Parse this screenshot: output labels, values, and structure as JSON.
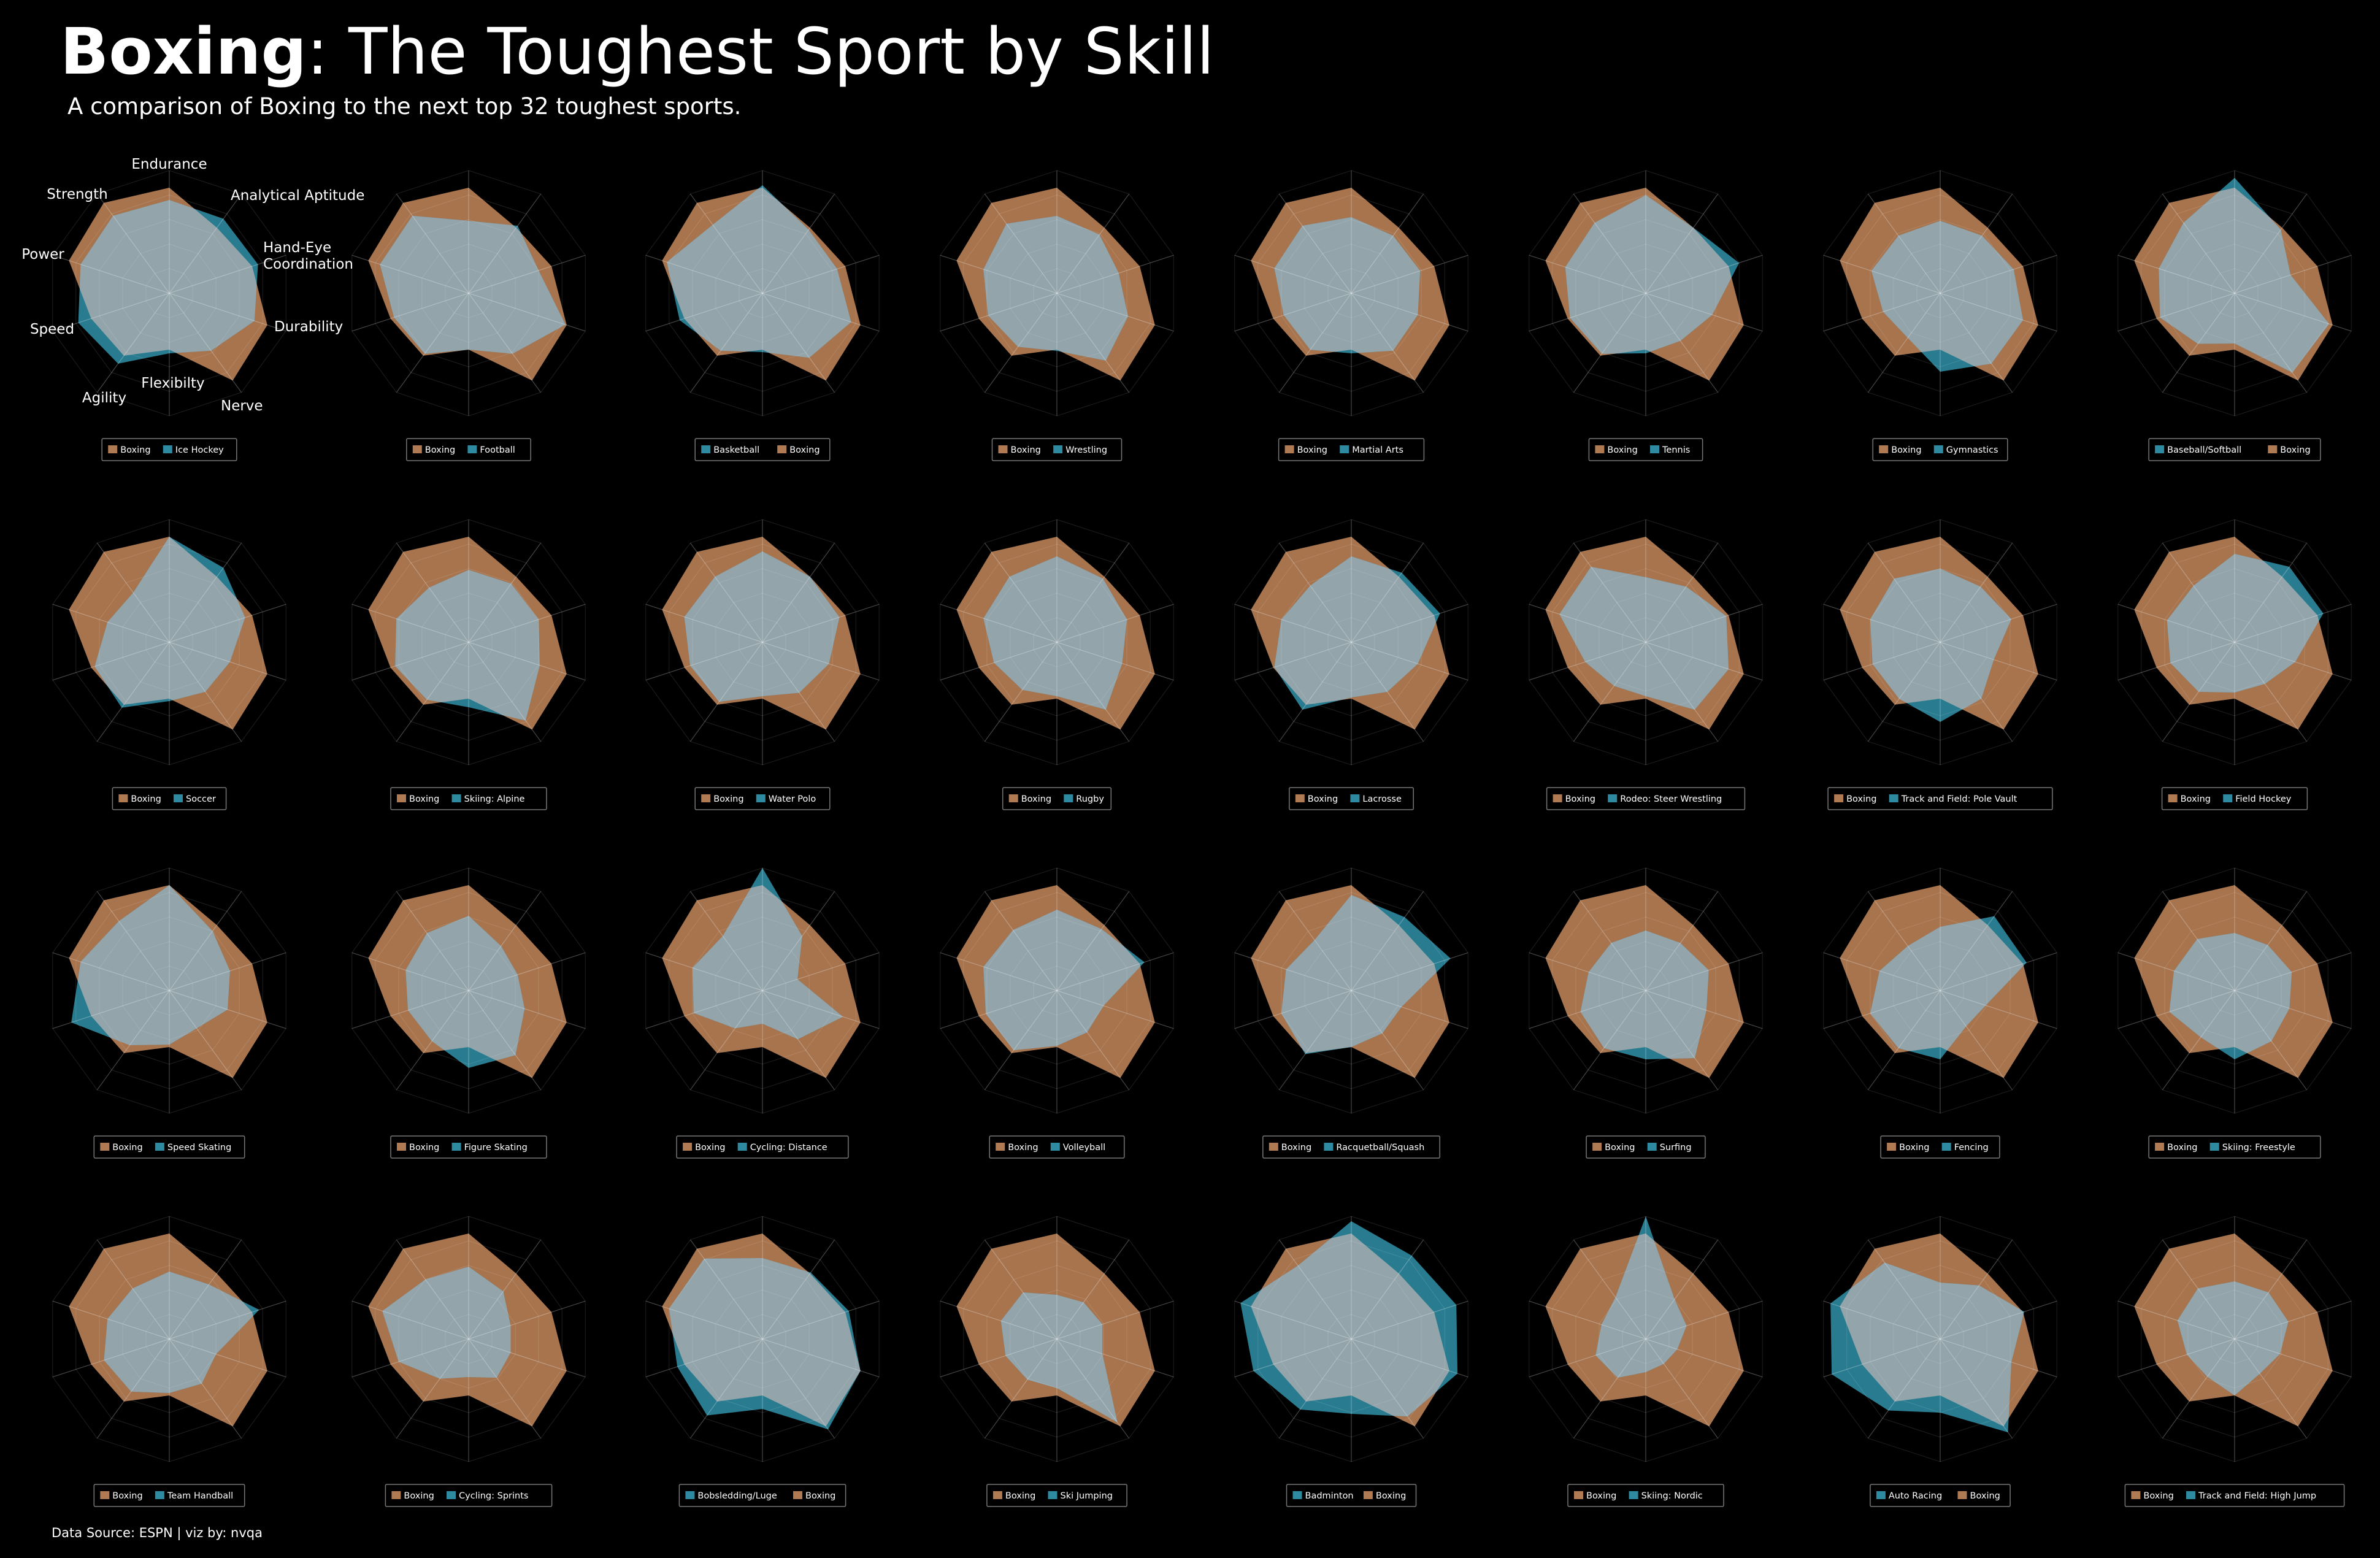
{
  "header": {
    "title_bold": "Boxing",
    "title_rest": ": The Toughest Sport by Skill",
    "subtitle": "A comparison of Boxing to the next top 32 toughest sports."
  },
  "footer": {
    "source": "Data Source: ESPN | viz by: nvqa"
  },
  "colors": {
    "boxing": "#b07a52",
    "other": "#2d8aa0",
    "overlap": "#93a4ab",
    "background": "#000000"
  },
  "chart_data": {
    "type": "radar",
    "axes": [
      "Endurance",
      "Analytical Aptitude",
      "Hand-Eye\nCoordination",
      "Durability",
      "Nerve",
      "Flexibilty",
      "Agility",
      "Speed",
      "Power",
      "Strength"
    ],
    "boxing_values": [
      8.6,
      6.6,
      7.1,
      8.4,
      8.8,
      4.6,
      6.3,
      6.7,
      8.6,
      9.1
    ],
    "grid": true,
    "comparisons": [
      {
        "legend": [
          "Boxing",
          "Ice Hockey"
        ],
        "boxing_first": true,
        "values": [
          7.6,
          7.5,
          7.6,
          7.3,
          5.8,
          4.9,
          7.1,
          7.8,
          7.6,
          7.8
        ]
      },
      {
        "legend": [
          "Boxing",
          "Football"
        ],
        "boxing_first": true,
        "values": [
          5.9,
          6.8,
          6.0,
          8.3,
          6.1,
          4.6,
          6.1,
          6.4,
          7.6,
          7.8
        ]
      },
      {
        "legend": [
          "Basketball",
          "Boxing"
        ],
        "boxing_first": false,
        "values": [
          8.8,
          6.4,
          6.4,
          7.6,
          6.5,
          4.8,
          5.8,
          7.1,
          8.2,
          6.9
        ]
      },
      {
        "legend": [
          "Boxing",
          "Wrestling"
        ],
        "boxing_first": true,
        "values": [
          6.3,
          5.9,
          5.3,
          6.1,
          6.8,
          4.7,
          5.4,
          5.9,
          6.3,
          7.0
        ]
      },
      {
        "legend": [
          "Boxing",
          "Martial Arts"
        ],
        "boxing_first": true,
        "values": [
          6.2,
          5.8,
          5.9,
          5.7,
          5.8,
          4.9,
          5.7,
          5.8,
          6.6,
          6.8
        ]
      },
      {
        "legend": [
          "Boxing",
          "Tennis"
        ],
        "boxing_first": true,
        "values": [
          8.0,
          6.6,
          8.0,
          5.7,
          4.8,
          4.9,
          6.1,
          6.5,
          6.9,
          7.1
        ]
      },
      {
        "legend": [
          "Boxing",
          "Gymnastics"
        ],
        "boxing_first": true,
        "values": [
          5.9,
          5.8,
          6.3,
          7.1,
          7.1,
          6.4,
          4.5,
          4.9,
          5.9,
          5.8
        ]
      },
      {
        "legend": [
          "Baseball/Softball",
          "Boxing"
        ],
        "boxing_first": false,
        "values": [
          9.4,
          6.4,
          4.8,
          8.1,
          8.0,
          4.1,
          5.1,
          6.4,
          6.5,
          7.1
        ]
      },
      {
        "legend": [
          "Boxing",
          "Soccer"
        ],
        "boxing_first": true,
        "values": [
          8.6,
          7.5,
          6.5,
          5.2,
          5.0,
          4.8,
          6.6,
          6.4,
          5.3,
          5.0
        ]
      },
      {
        "legend": [
          "Boxing",
          "Skiing: Alpine"
        ],
        "boxing_first": true,
        "values": [
          5.9,
          5.9,
          6.0,
          6.1,
          7.9,
          5.3,
          5.8,
          6.3,
          6.2,
          5.5
        ]
      },
      {
        "legend": [
          "Boxing",
          "Water Polo"
        ],
        "boxing_first": true,
        "values": [
          7.4,
          6.6,
          6.6,
          5.7,
          5.1,
          4.4,
          6.0,
          6.2,
          6.7,
          6.6
        ]
      },
      {
        "legend": [
          "Boxing",
          "Rugby"
        ],
        "boxing_first": true,
        "values": [
          7.0,
          6.4,
          6.0,
          5.6,
          6.8,
          4.4,
          4.8,
          5.4,
          6.3,
          6.6
        ]
      },
      {
        "legend": [
          "Boxing",
          "Lacrosse"
        ],
        "boxing_first": true,
        "values": [
          7.0,
          7.0,
          7.6,
          5.7,
          5.0,
          4.5,
          6.8,
          6.6,
          6.0,
          5.7
        ]
      },
      {
        "legend": [
          "Boxing",
          "Rodeo: Steer Wrestling"
        ],
        "boxing_first": true,
        "values": [
          5.3,
          5.6,
          6.9,
          7.1,
          6.8,
          4.4,
          4.4,
          5.2,
          7.4,
          7.6
        ]
      },
      {
        "legend": [
          "Boxing",
          "Track and Field: Pole Vault"
        ],
        "boxing_first": true,
        "values": [
          6.0,
          5.6,
          6.1,
          4.6,
          5.7,
          6.5,
          5.7,
          5.8,
          6.0,
          6.4
        ]
      },
      {
        "legend": [
          "Boxing",
          "Field Hockey"
        ],
        "boxing_first": true,
        "values": [
          7.2,
          7.6,
          7.6,
          5.2,
          4.2,
          4.1,
          5.0,
          5.5,
          5.8,
          5.7
        ]
      },
      {
        "legend": [
          "Boxing",
          "Speed Skating"
        ],
        "boxing_first": true,
        "values": [
          8.6,
          6.0,
          5.2,
          5.0,
          3.8,
          4.4,
          5.5,
          8.4,
          7.6,
          7.0
        ]
      },
      {
        "legend": [
          "Boxing",
          "Figure Skating"
        ],
        "boxing_first": true,
        "values": [
          6.1,
          4.5,
          4.2,
          4.8,
          6.5,
          6.3,
          5.1,
          5.2,
          5.4,
          5.8
        ]
      },
      {
        "legend": [
          "Boxing",
          "Cycling: Distance"
        ],
        "boxing_first": true,
        "values": [
          10.0,
          5.5,
          3.0,
          6.9,
          4.9,
          2.7,
          3.8,
          5.9,
          6.0,
          5.5
        ]
      },
      {
        "legend": [
          "Boxing",
          "Volleyball"
        ],
        "boxing_first": true,
        "values": [
          6.6,
          6.2,
          7.5,
          4.0,
          4.2,
          4.5,
          6.0,
          6.1,
          6.3,
          6.1
        ]
      },
      {
        "legend": [
          "Boxing",
          "Racquetball/Squash"
        ],
        "boxing_first": true,
        "values": [
          7.8,
          7.4,
          8.5,
          4.3,
          4.3,
          4.6,
          6.4,
          6.0,
          5.6,
          5.1
        ]
      },
      {
        "legend": [
          "Boxing",
          "Surfing"
        ],
        "boxing_first": true,
        "values": [
          4.9,
          4.8,
          5.4,
          5.2,
          6.8,
          5.6,
          5.8,
          5.6,
          4.9,
          4.8
        ]
      },
      {
        "legend": [
          "Boxing",
          "Fencing"
        ],
        "boxing_first": true,
        "values": [
          5.2,
          7.5,
          7.4,
          3.9,
          3.6,
          5.6,
          5.8,
          6.0,
          5.2,
          4.5
        ]
      },
      {
        "legend": [
          "Boxing",
          "Skiing: Freestyle"
        ],
        "boxing_first": true,
        "values": [
          4.7,
          4.6,
          4.9,
          4.7,
          5.1,
          5.6,
          4.7,
          5.6,
          5.2,
          5.2
        ]
      },
      {
        "legend": [
          "Boxing",
          "Team Handball"
        ],
        "boxing_first": true,
        "values": [
          5.5,
          5.5,
          7.7,
          4.0,
          4.5,
          4.4,
          5.3,
          5.6,
          5.3,
          5.1
        ]
      },
      {
        "legend": [
          "Boxing",
          "Cycling: Sprints"
        ],
        "boxing_first": true,
        "values": [
          5.9,
          4.8,
          3.6,
          3.6,
          3.9,
          3.1,
          4.0,
          6.0,
          7.4,
          6.0
        ]
      },
      {
        "legend": [
          "Bobsledding/Luge",
          "Boxing"
        ],
        "boxing_first": false,
        "values": [
          6.6,
          6.7,
          7.4,
          8.4,
          9.1,
          5.7,
          7.7,
          7.3,
          8.0,
          8.1
        ]
      },
      {
        "legend": [
          "Boxing",
          "Ski Jumping"
        ],
        "boxing_first": true,
        "values": [
          3.6,
          3.7,
          3.9,
          3.9,
          8.4,
          4.0,
          4.1,
          4.4,
          4.8,
          4.7
        ]
      },
      {
        "legend": [
          "Badminton",
          "Boxing"
        ],
        "boxing_first": false,
        "values": [
          9.6,
          8.4,
          9.0,
          9.1,
          7.8,
          6.1,
          7.1,
          8.4,
          9.5,
          7.4
        ]
      },
      {
        "legend": [
          "Boxing",
          "Skiing: Nordic"
        ],
        "boxing_first": true,
        "values": [
          10.0,
          4.0,
          3.5,
          2.7,
          2.5,
          2.7,
          3.9,
          4.3,
          3.8,
          4.2
        ]
      },
      {
        "legend": [
          "Auto Racing",
          "Boxing"
        ],
        "boxing_first": false,
        "values": [
          4.6,
          5.4,
          7.2,
          6.1,
          9.4,
          6.0,
          7.2,
          9.3,
          9.4,
          7.7
        ]
      },
      {
        "legend": [
          "Boxing",
          "Track and Field: High Jump"
        ],
        "boxing_first": true,
        "values": [
          4.7,
          4.7,
          4.6,
          3.9,
          3.5,
          4.6,
          3.8,
          4.1,
          4.9,
          5.1
        ]
      }
    ]
  }
}
